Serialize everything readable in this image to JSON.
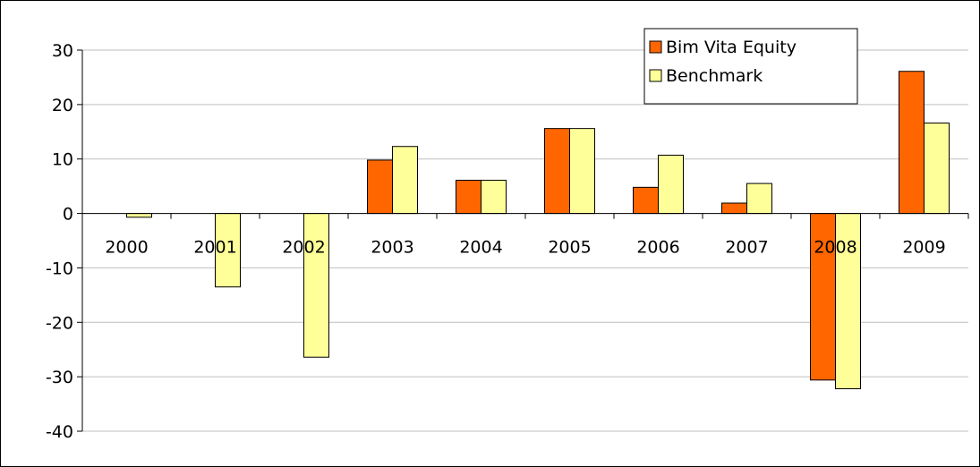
{
  "chart_data": {
    "type": "bar",
    "categories": [
      "2000",
      "2001",
      "2002",
      "2003",
      "2004",
      "2005",
      "2006",
      "2007",
      "2008",
      "2009"
    ],
    "series": [
      {
        "name": "Bim Vita Equity",
        "color": "#ff6600",
        "values": [
          null,
          null,
          null,
          9.8,
          6.1,
          15.6,
          4.8,
          1.9,
          -30.6,
          26.1
        ]
      },
      {
        "name": "Benchmark",
        "color": "#ffff99",
        "values": [
          -0.7,
          -13.5,
          -26.4,
          12.3,
          6.1,
          15.6,
          10.7,
          5.5,
          -32.2,
          16.6
        ]
      }
    ],
    "ylim": [
      -40,
      30
    ],
    "yticks": [
      30,
      20,
      10,
      0,
      -10,
      -20,
      -30,
      -40
    ],
    "grid": true,
    "legend_position": "top-right",
    "title": "",
    "xlabel": "",
    "ylabel": ""
  }
}
